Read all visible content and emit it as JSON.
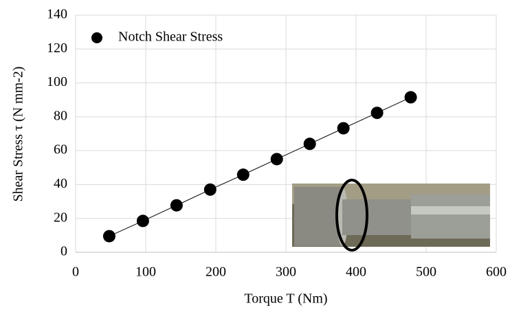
{
  "chart_data": {
    "type": "scatter",
    "x_label": "Torque T (Nm)",
    "y_label": "Shear Stress τ (N mm-2)",
    "x": [
      48,
      96,
      144,
      192,
      239,
      287,
      334,
      382,
      430,
      478
    ],
    "series": [
      {
        "name": "Notch Shear Stress",
        "color": "#000000",
        "values": [
          9.5,
          18.5,
          27.7,
          37,
          45.8,
          55,
          64,
          73.2,
          82.3,
          91.5
        ]
      }
    ],
    "xlim": [
      0,
      600
    ],
    "xticks": [
      0,
      100,
      200,
      300,
      400,
      500,
      600
    ],
    "ylim": [
      0,
      140
    ],
    "yticks": [
      0,
      20,
      40,
      60,
      80,
      100,
      120,
      140
    ],
    "grid": true,
    "connect_line": true,
    "legend": "upper-left"
  }
}
